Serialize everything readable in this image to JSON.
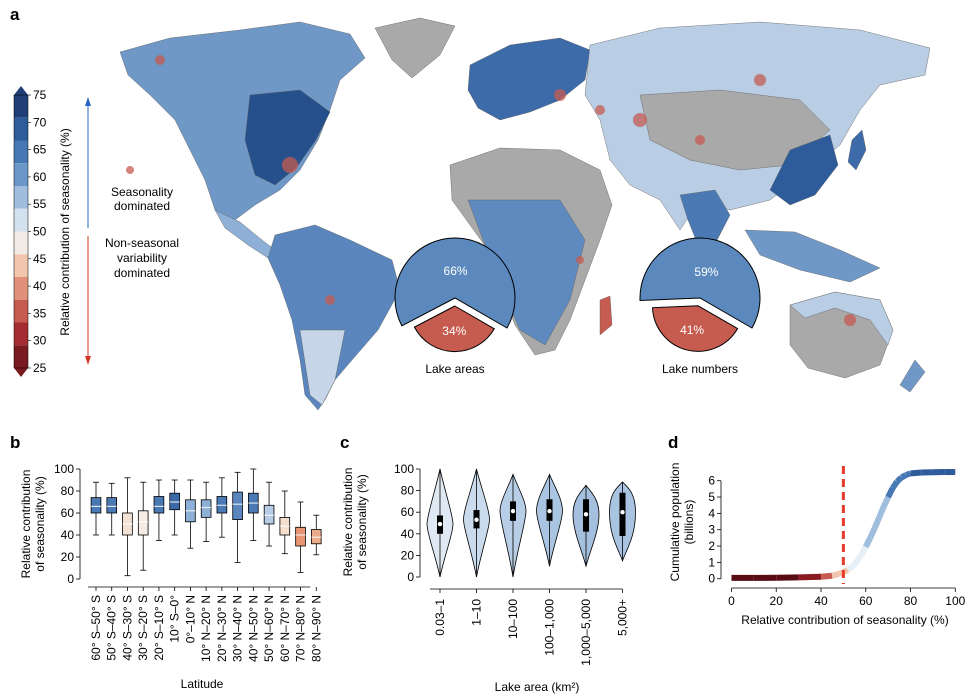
{
  "panels": {
    "a": "a",
    "b": "b",
    "c": "c",
    "d": "d"
  },
  "colors": {
    "land_no_data": "#a9a9a9",
    "seasonal_blue": "#5b89bd",
    "seasonal_dark_blue": "#20457a",
    "nonseasonal_red": "#c65b50",
    "nonseasonal_dark_red": "#6e0f16",
    "threshold_line": "#e63a2a",
    "arrow_blue": "#2a63c8",
    "arrow_red": "#d43a2a"
  },
  "map": {
    "colorbar": {
      "label": "Relative contribution of seasonality (%)",
      "ticks": [
        "75",
        "70",
        "65",
        "60",
        "55",
        "50",
        "45",
        "40",
        "35",
        "30",
        "25"
      ],
      "colors": [
        "#1f3f76",
        "#2e5b9a",
        "#4678b3",
        "#6b97c8",
        "#9fbddd",
        "#d4e2ef",
        "#f3ece6",
        "#f1c6ad",
        "#e1917a",
        "#c65b50",
        "#a52c30",
        "#781a20"
      ]
    },
    "seasonality_label": "Seasonality\ndominated",
    "nonseasonal_label": "Non-seasonal\nvariability\ndominated"
  },
  "chart_data": [
    {
      "panel": "a (lake areas)",
      "type": "pie",
      "labels": [
        "66%",
        "34%"
      ],
      "values": [
        66,
        34
      ],
      "colors": [
        "#5b89bd",
        "#c65b50"
      ],
      "title": "Lake areas"
    },
    {
      "panel": "a (lake numbers)",
      "type": "pie",
      "labels": [
        "59%",
        "41%"
      ],
      "values": [
        59,
        41
      ],
      "colors": [
        "#5b89bd",
        "#c65b50"
      ],
      "title": "Lake numbers"
    },
    {
      "panel": "b",
      "type": "box",
      "xlabel": "Latitude",
      "ylabel": "Relative contribution\nof seasonality (%)",
      "ylim": [
        0,
        100
      ],
      "yticks": [
        "0",
        "20",
        "40",
        "60",
        "80",
        "100"
      ],
      "categories": [
        "60° S–50° S",
        "50° S–40° S",
        "40° S–30° S",
        "30° S–20° S",
        "20° S–10° S",
        "10° S–0°",
        "0°–10° N",
        "10° N–20° N",
        "20° N–30° N",
        "30° N–40° N",
        "40° N–50° N",
        "50° N–60° N",
        "60° N–70° N",
        "70° N–80° N",
        "80° N–90° N"
      ],
      "boxes": [
        {
          "min": 40,
          "q1": 60,
          "median": 66,
          "q3": 74,
          "max": 88,
          "color": "#4a79b4"
        },
        {
          "min": 40,
          "q1": 60,
          "median": 66,
          "q3": 74,
          "max": 87,
          "color": "#4a79b4"
        },
        {
          "min": 3,
          "q1": 40,
          "median": 50,
          "q3": 60,
          "max": 92,
          "color": "#f2e2d6"
        },
        {
          "min": 8,
          "q1": 40,
          "median": 52,
          "q3": 62,
          "max": 88,
          "color": "#f7ece4"
        },
        {
          "min": 35,
          "q1": 60,
          "median": 66,
          "q3": 75,
          "max": 90,
          "color": "#4a79b4"
        },
        {
          "min": 40,
          "q1": 63,
          "median": 70,
          "q3": 78,
          "max": 90,
          "color": "#3b69a8"
        },
        {
          "min": 28,
          "q1": 52,
          "median": 62,
          "q3": 72,
          "max": 90,
          "color": "#8fb0d6"
        },
        {
          "min": 34,
          "q1": 56,
          "median": 65,
          "q3": 72,
          "max": 88,
          "color": "#8fb0d6"
        },
        {
          "min": 38,
          "q1": 60,
          "median": 67,
          "q3": 75,
          "max": 92,
          "color": "#4a79b4"
        },
        {
          "min": 15,
          "q1": 54,
          "median": 68,
          "q3": 79,
          "max": 97,
          "color": "#5a86bd"
        },
        {
          "min": 35,
          "q1": 60,
          "median": 69,
          "q3": 78,
          "max": 100,
          "color": "#4a79b4"
        },
        {
          "min": 30,
          "q1": 50,
          "median": 58,
          "q3": 67,
          "max": 88,
          "color": "#b7cde5"
        },
        {
          "min": 23,
          "q1": 40,
          "median": 48,
          "q3": 56,
          "max": 80,
          "color": "#f6dfcd"
        },
        {
          "min": 6,
          "q1": 30,
          "median": 40,
          "q3": 47,
          "max": 70,
          "color": "#e79572"
        },
        {
          "min": 22,
          "q1": 32,
          "median": 38,
          "q3": 45,
          "max": 58,
          "color": "#ecab8a"
        }
      ]
    },
    {
      "panel": "c",
      "type": "violin",
      "xlabel": "Lake area (km²)",
      "ylabel": "Relative contribution\nof seasonality (%)",
      "ylim": [
        0,
        100
      ],
      "yticks": [
        "0",
        "20",
        "40",
        "60",
        "80",
        "100"
      ],
      "categories": [
        "0.03–1",
        "1–10",
        "10–100",
        "100–1,000",
        "1,000–5,000",
        "5,000+"
      ],
      "violins": [
        {
          "min": 0,
          "q1": 40,
          "median": 49,
          "q3": 57,
          "max": 100,
          "color": "#dfe9f3"
        },
        {
          "min": 0,
          "q1": 45,
          "median": 53,
          "q3": 62,
          "max": 100,
          "color": "#c9dbec"
        },
        {
          "min": 0,
          "q1": 52,
          "median": 61,
          "q3": 70,
          "max": 95,
          "color": "#b8cee6"
        },
        {
          "min": 10,
          "q1": 52,
          "median": 61,
          "q3": 72,
          "max": 95,
          "color": "#aac5e1"
        },
        {
          "min": 10,
          "q1": 42,
          "median": 58,
          "q3": 72,
          "max": 85,
          "color": "#a4c0de"
        },
        {
          "min": 15,
          "q1": 38,
          "median": 60,
          "q3": 78,
          "max": 88,
          "color": "#a9c4e0"
        }
      ]
    },
    {
      "panel": "d",
      "type": "line",
      "xlabel": "Relative contribution of seasonality (%)",
      "ylabel": "Cumulative population\n(billions)",
      "xlim": [
        -2,
        103
      ],
      "ylim": [
        -0.2,
        6.9
      ],
      "xticks": [
        "0",
        "20",
        "40",
        "60",
        "80",
        "100"
      ],
      "yticks": [
        "0",
        "1",
        "2",
        "3",
        "4",
        "5",
        "6"
      ],
      "threshold_x": 50,
      "x": [
        0,
        10,
        20,
        30,
        40,
        45,
        48,
        50,
        52,
        54,
        56,
        58,
        60,
        62,
        64,
        66,
        68,
        70,
        72,
        74,
        76,
        78,
        80,
        85,
        90,
        95,
        100
      ],
      "y": [
        0.05,
        0.05,
        0.06,
        0.08,
        0.12,
        0.18,
        0.3,
        0.4,
        0.55,
        0.75,
        1.05,
        1.45,
        1.95,
        2.5,
        3.1,
        3.75,
        4.4,
        5.0,
        5.55,
        5.95,
        6.2,
        6.35,
        6.45,
        6.5,
        6.52,
        6.53,
        6.53
      ]
    }
  ]
}
